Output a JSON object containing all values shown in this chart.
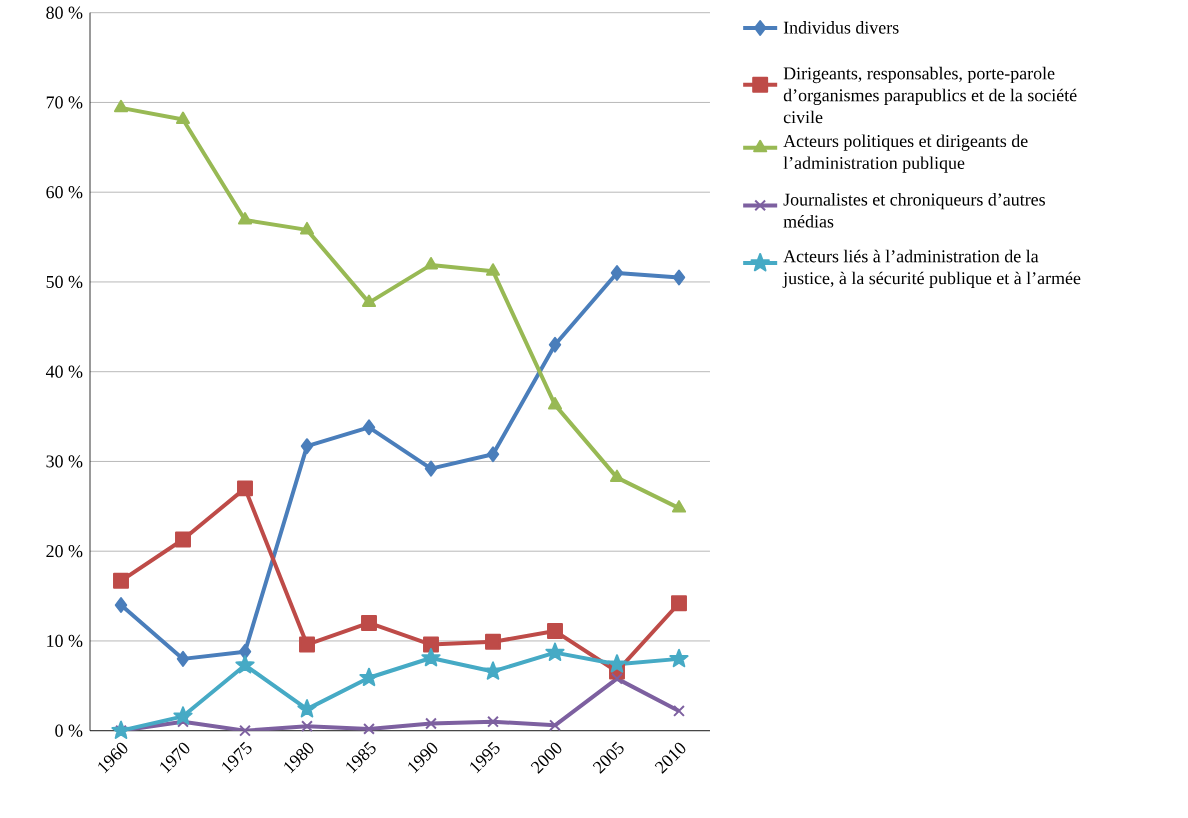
{
  "chart_data": {
    "type": "line",
    "categories": [
      "1960",
      "1970",
      "1975",
      "1980",
      "1985",
      "1990",
      "1995",
      "2000",
      "2005",
      "2010"
    ],
    "series": [
      {
        "name": "Individus divers",
        "color": "#4a7ebb",
        "marker": "diamond",
        "values": [
          14,
          8,
          8.8,
          31.7,
          33.8,
          29.2,
          30.8,
          43,
          51,
          50.5
        ]
      },
      {
        "name": "Dirigeants, responsables, porte-parole d’organismes parapublics et de la société civile",
        "color": "#be4b48",
        "marker": "square",
        "values": [
          16.7,
          21.3,
          27,
          9.6,
          12,
          9.6,
          9.9,
          11.1,
          6.6,
          14.2
        ]
      },
      {
        "name": "Acteurs politiques et dirigeants de l’administration publique",
        "color": "#98b954",
        "marker": "triangle",
        "values": [
          69.4,
          68.1,
          56.9,
          55.8,
          47.7,
          51.9,
          51.2,
          36.3,
          28.2,
          24.8
        ]
      },
      {
        "name": "Journalistes et chroniqueurs d’autres médias",
        "color": "#7d60a0",
        "marker": "cross",
        "values": [
          0,
          1,
          0,
          0.5,
          0.2,
          0.8,
          1,
          0.6,
          5.8,
          2.2
        ]
      },
      {
        "name": "Acteurs liés à l’administration de la justice, à la sécurité publique et à l’armée",
        "color": "#46aac5",
        "marker": "star",
        "values": [
          0,
          1.6,
          7.3,
          2.4,
          5.9,
          8.1,
          6.6,
          8.7,
          7.4,
          8
        ]
      }
    ],
    "ylim": [
      0,
      80
    ],
    "yticks": [
      {
        "value": 0,
        "label": "0 %"
      },
      {
        "value": 10,
        "label": "10 %"
      },
      {
        "value": 20,
        "label": "20 %"
      },
      {
        "value": 30,
        "label": "30 %"
      },
      {
        "value": 40,
        "label": "40 %"
      },
      {
        "value": 50,
        "label": "50 %"
      },
      {
        "value": 60,
        "label": "60 %"
      },
      {
        "value": 70,
        "label": "70 %"
      },
      {
        "value": 80,
        "label": "80 %"
      }
    ],
    "grid": "y",
    "legend": "right"
  }
}
